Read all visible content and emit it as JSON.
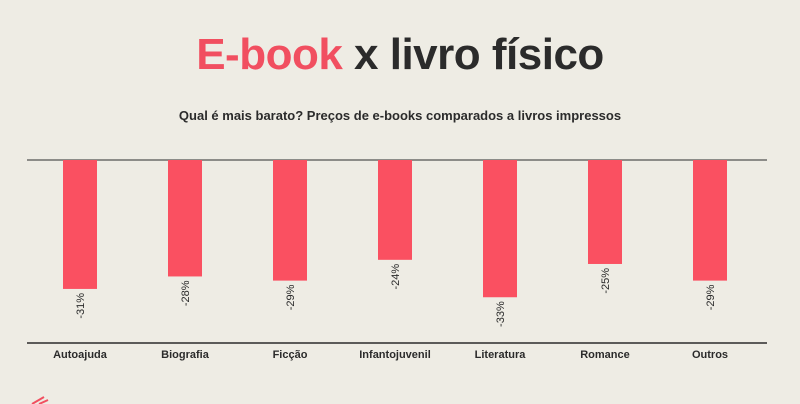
{
  "header": {
    "title_part1": "E-book",
    "title_part2": "x livro físico",
    "subtitle": "Qual é mais barato? Preços de e-books comparados a livros impressos"
  },
  "colors": {
    "accent": "#f14f60",
    "bar": "#fa5061",
    "text": "#2b2b2b",
    "background": "#eeece4"
  },
  "chart_data": {
    "type": "bar",
    "title": "E-book x livro físico",
    "subtitle": "Qual é mais barato? Preços de e-books comparados a livros impressos",
    "categories": [
      "Autoajuda",
      "Biografia",
      "Ficção",
      "Infantojuvenil",
      "Literatura",
      "Romance",
      "Outros"
    ],
    "values": [
      -31,
      -28,
      -29,
      -24,
      -33,
      -25,
      -29
    ],
    "labels": [
      "-31%",
      "-28%",
      "-29%",
      "-24%",
      "-33%",
      "-25%",
      "-29%"
    ],
    "ylim": [
      -44,
      0
    ],
    "grid": false,
    "legend": "none"
  }
}
